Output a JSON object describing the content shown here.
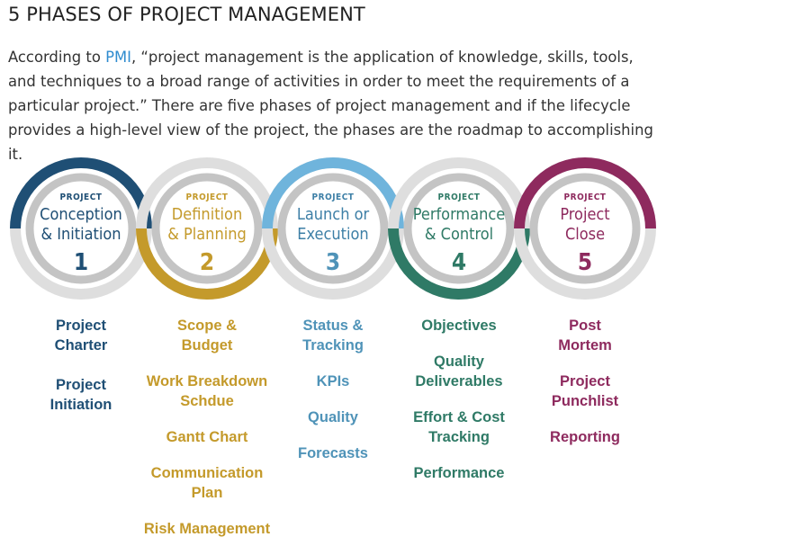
{
  "header": {
    "title": "5 PHASES OF PROJECT MANAGEMENT"
  },
  "intro": {
    "before_link": "According to ",
    "link": "PMI",
    "after_link": ", “project management is the application of knowledge, skills, tools, and techniques to a broad range of activities in order to meet the requirements of a particular project.” There are five phases of project management and if the lifecycle provides a high-level view of the project, the phases are the roadmap to accomplishing it."
  },
  "phases": [
    {
      "kicker": "PROJECT",
      "line1": "Conception",
      "line2": "& Initiation",
      "number": "1",
      "color": "#1f4f75",
      "items": [
        "Project\nCharter",
        "Project\nInitiation"
      ]
    },
    {
      "kicker": "PROJECT",
      "line1": "Definition",
      "line2": "& Planning",
      "number": "2",
      "color": "#c49a2b",
      "items": [
        "Scope &\nBudget",
        "Work Breakdown\nSchdue",
        "Gantt Chart",
        "Communication Plan",
        "Risk Management"
      ]
    },
    {
      "kicker": "PROJECT",
      "line1": "Launch or",
      "line2": "Execution",
      "number": "3",
      "color": "#4f93b8",
      "items": [
        "Status &\nTracking",
        "KPIs",
        "Quality",
        "Forecasts"
      ]
    },
    {
      "kicker": "PROJECT",
      "line1": "Performance",
      "line2": "& Control",
      "number": "4",
      "color": "#2f7a66",
      "items": [
        "Objectives",
        "Quality\nDeliverables",
        "Effort & Cost\nTracking",
        "Performance"
      ]
    },
    {
      "kicker": "PROJECT",
      "line1": "Project",
      "line2": "Close",
      "number": "5",
      "color": "#8e2a5e",
      "items": [
        "Post\nMortem",
        "Project\nPunchlist",
        "Reporting"
      ]
    }
  ],
  "ring_colors": {
    "track": "#d9d9d9",
    "inner_track": "#bfbfbf",
    "arc_1": "#1f4f75",
    "arc_2": "#c49a2b",
    "arc_3": "#6fb4dc",
    "arc_4": "#2f7a66",
    "arc_5": "#8e2a5e"
  }
}
